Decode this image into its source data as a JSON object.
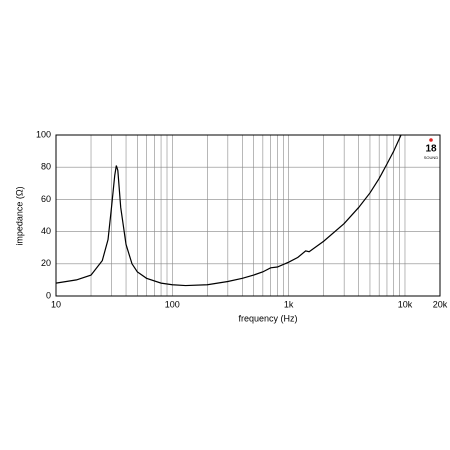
{
  "chart_data": {
    "type": "line",
    "xlabel": "frequency (Hz)",
    "ylabel": "impedance (Ω)",
    "logo": "18",
    "logo_sub": "SOUND",
    "xscale": "log",
    "grid": true,
    "xlim": [
      10,
      20000
    ],
    "ylim": [
      0,
      100
    ],
    "xticks": [
      10,
      {
        "value": 100,
        "label": "100"
      },
      {
        "value": 1000,
        "label": "1k"
      },
      {
        "value": 10000,
        "label": "10k"
      },
      {
        "value": 20000,
        "label": "20k"
      }
    ],
    "yticks": [
      0,
      20,
      40,
      60,
      80,
      100
    ],
    "series": [
      {
        "name": "impedance",
        "color": "#000000",
        "x": [
          10,
          15,
          20,
          25,
          28,
          30,
          32,
          33,
          34,
          36,
          40,
          45,
          50,
          60,
          80,
          100,
          130,
          200,
          300,
          400,
          500,
          600,
          700,
          800,
          1000,
          1200,
          1400,
          1500,
          2000,
          3000,
          4000,
          5000,
          6000,
          7000,
          8000,
          9250
        ],
        "values": [
          8,
          10,
          13,
          22,
          35,
          55,
          75,
          81,
          78,
          55,
          32,
          20,
          15,
          11,
          8,
          7,
          6.5,
          7,
          9,
          11,
          13,
          15,
          17.5,
          18,
          21,
          24,
          28,
          27.5,
          34,
          45,
          55,
          64,
          73,
          82,
          90,
          100
        ]
      }
    ]
  }
}
